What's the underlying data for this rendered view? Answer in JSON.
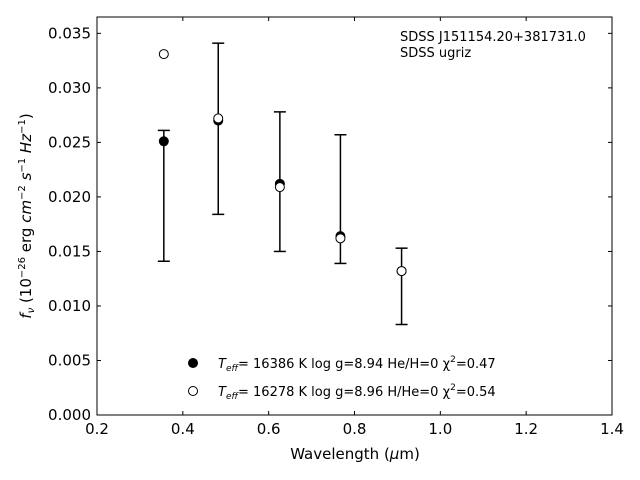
{
  "chart_data": {
    "type": "scatter",
    "xlabel": "Wavelength (μm)",
    "ylabel": "fν (10−26 erg cm−2 s−1 Hz−1)",
    "xlim": [
      0.2,
      1.4
    ],
    "ylim": [
      0.0,
      0.0365
    ],
    "x_ticks": [
      "0.2",
      "0.4",
      "0.6",
      "0.8",
      "1.0",
      "1.2",
      "1.4"
    ],
    "y_ticks": [
      "0.000",
      "0.005",
      "0.010",
      "0.015",
      "0.020",
      "0.025",
      "0.030",
      "0.035"
    ],
    "grid": false,
    "legend_position": "bottom-center",
    "annotations": [
      "SDSS J151154.20+381731.0",
      "SDSS ugriz"
    ],
    "observed": {
      "x": [
        0.3557,
        0.4825,
        0.6261,
        0.7672,
        0.9097
      ],
      "y_low": [
        0.0141,
        0.0184,
        0.015,
        0.0139,
        0.0083
      ],
      "y_high": [
        0.0261,
        0.0341,
        0.0278,
        0.0257,
        0.0153
      ]
    },
    "series": [
      {
        "name": "T_eff= 16386 K  log g=8.94  He/H=0  χ²=0.47",
        "label_parts": {
          "t": "T",
          "sub": "eff",
          "rest": "= 16386 K  log g=8.94  He/H=0  χ",
          "sup": "2",
          "end": "=0.47"
        },
        "marker": "filled-circle",
        "x": [
          0.3557,
          0.4825,
          0.6261,
          0.7672,
          0.9097
        ],
        "y": [
          0.0251,
          0.027,
          0.0212,
          0.0164,
          0.0132
        ]
      },
      {
        "name": "T_eff= 16278 K  log g=8.96  H/He=0  χ²=0.54",
        "label_parts": {
          "t": "T",
          "sub": "eff",
          "rest": "= 16278 K  log g=8.96  H/He=0  χ",
          "sup": "2",
          "end": "=0.54"
        },
        "marker": "open-circle",
        "x": [
          0.3557,
          0.4825,
          0.6261,
          0.7672,
          0.9097
        ],
        "y": [
          0.0331,
          0.0272,
          0.0209,
          0.0162,
          0.0132
        ]
      }
    ],
    "colors": {
      "marker": "#000000",
      "axes": "#000000"
    }
  }
}
